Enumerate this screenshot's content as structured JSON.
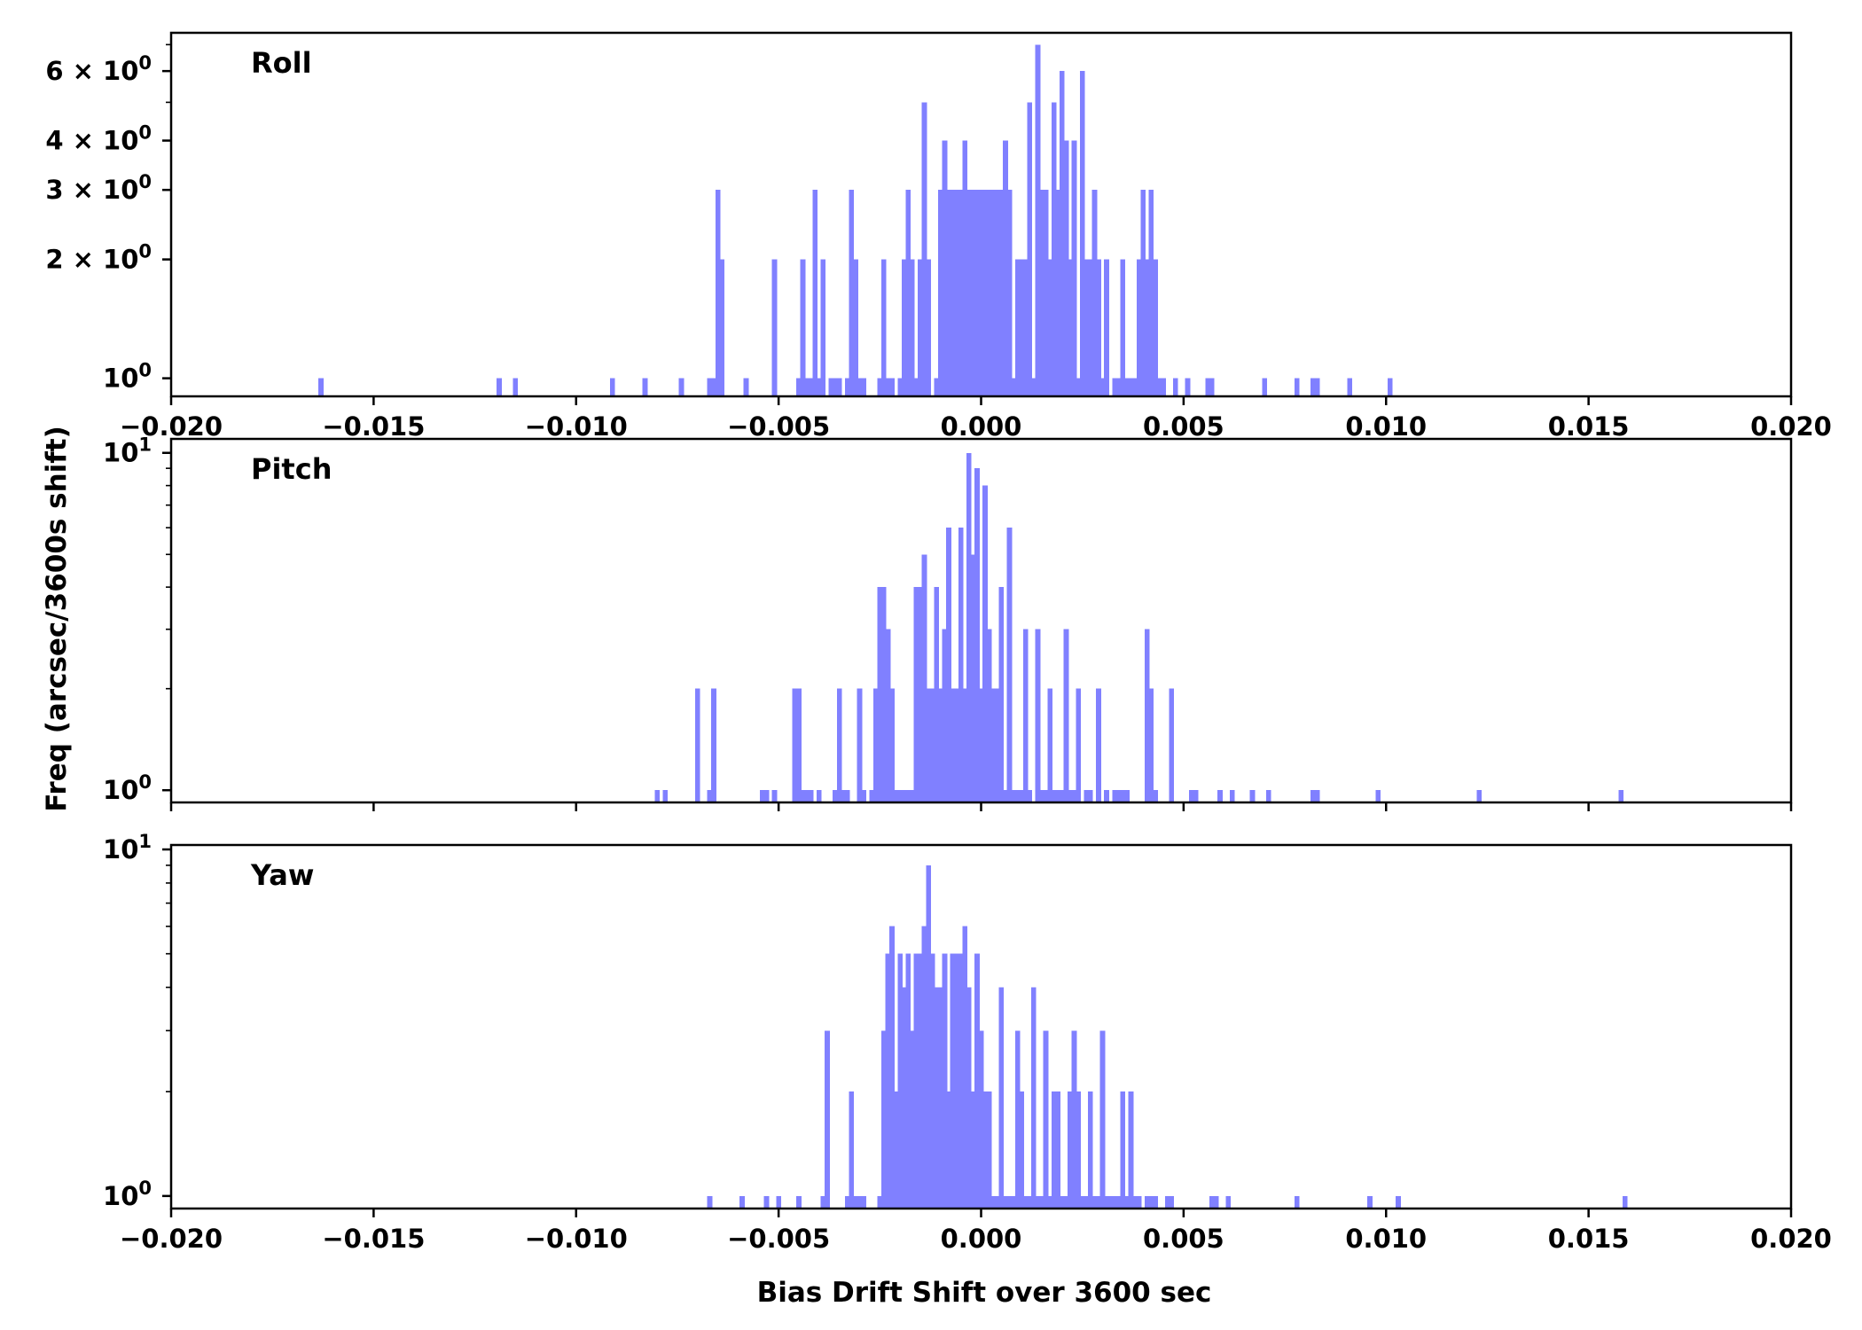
{
  "figure": {
    "xlabel": "Bias Drift Shift over 3600 sec",
    "ylabel": "Freq (arcsec/3600s shift)",
    "bar_color": "#8080ff"
  },
  "chart_data": [
    {
      "type": "bar",
      "title": "Roll",
      "xlim": [
        -0.02,
        0.02
      ],
      "ylim": [
        0.9,
        7.5
      ],
      "y_scale": "log",
      "bin_width": 0.000125,
      "x_ticks": [
        "−0.020",
        "−0.015",
        "−0.010",
        "−0.005",
        "0.000",
        "0.005",
        "0.010",
        "0.015",
        "0.020"
      ],
      "y_ticks": [
        {
          "value": 1,
          "base": "10",
          "exp": "0"
        },
        {
          "value": 2,
          "base": "2 × 10",
          "exp": "0"
        },
        {
          "value": 3,
          "base": "3 × 10",
          "exp": "0"
        },
        {
          "value": 4,
          "base": "4 × 10",
          "exp": "0"
        },
        {
          "value": 6,
          "base": "6 × 10",
          "exp": "0"
        }
      ],
      "y_minor_ticks": [
        5,
        7
      ],
      "x": [
        -0.0163,
        -0.0119,
        -0.0115,
        -0.0091,
        -0.0083,
        -0.0074,
        -0.0067,
        -0.0066,
        -0.0065,
        -0.0064,
        -0.0058,
        -0.0051,
        -0.0045,
        -0.0044,
        -0.0043,
        -0.0042,
        -0.0041,
        -0.004,
        -0.0039,
        -0.0037,
        -0.0036,
        -0.0035,
        -0.0033,
        -0.0032,
        -0.0031,
        -0.003,
        -0.0029,
        -0.0025,
        -0.0024,
        -0.0023,
        -0.0022,
        -0.002,
        -0.0019,
        -0.0018,
        -0.0017,
        -0.0016,
        -0.0015,
        -0.0014,
        -0.0013,
        -0.0011,
        -0.001,
        -0.0009,
        -0.0008,
        -0.0007,
        -0.0006,
        -0.0005,
        -0.0004,
        -0.0003,
        -0.0002,
        -0.0001,
        0.0,
        0.0001,
        0.0002,
        0.0003,
        0.0004,
        0.0005,
        0.0006,
        0.0007,
        0.0008,
        0.0009,
        0.001,
        0.0011,
        0.0012,
        0.0013,
        0.0014,
        0.0015,
        0.0016,
        0.0017,
        0.0018,
        0.0019,
        0.002,
        0.0021,
        0.0022,
        0.0023,
        0.0024,
        0.0025,
        0.0026,
        0.0027,
        0.0028,
        0.0029,
        0.003,
        0.0031,
        0.0033,
        0.0034,
        0.0035,
        0.0036,
        0.0037,
        0.0038,
        0.0039,
        0.004,
        0.0041,
        0.0042,
        0.0043,
        0.0044,
        0.0045,
        0.0048,
        0.0051,
        0.0056,
        0.0057,
        0.007,
        0.0078,
        0.0082,
        0.0083,
        0.0091,
        0.0101
      ],
      "values": [
        1,
        1,
        1,
        1,
        1,
        1,
        1,
        1,
        3,
        2,
        1,
        2,
        1,
        2,
        1,
        1,
        3,
        1,
        2,
        1,
        1,
        1,
        1,
        3,
        2,
        1,
        1,
        1,
        2,
        1,
        1,
        1,
        2,
        3,
        2,
        1,
        2,
        5,
        2,
        1,
        3,
        4,
        3,
        3,
        3,
        3,
        4,
        3,
        3,
        3,
        3,
        3,
        3,
        3,
        3,
        3,
        4,
        3,
        1,
        2,
        2,
        2,
        5,
        1,
        7,
        3,
        3,
        2,
        5,
        3,
        6,
        4,
        2,
        4,
        1,
        6,
        2,
        2,
        3,
        2,
        1,
        2,
        1,
        1,
        2,
        1,
        1,
        1,
        2,
        3,
        2,
        3,
        2,
        1,
        1,
        1,
        1,
        1,
        1,
        1,
        1,
        1,
        1,
        1,
        1
      ]
    },
    {
      "type": "bar",
      "title": "Pitch",
      "xlim": [
        -0.02,
        0.02
      ],
      "ylim": [
        0.92,
        11.0
      ],
      "y_scale": "log",
      "bin_width": 0.000125,
      "x_ticks": [],
      "y_ticks": [
        {
          "value": 1,
          "base": "10",
          "exp": "0"
        },
        {
          "value": 10,
          "base": "10",
          "exp": "1"
        }
      ],
      "y_minor_ticks": [
        2,
        3,
        4,
        5,
        6,
        7,
        8,
        9
      ],
      "x": [
        -0.008,
        -0.0078,
        -0.007,
        -0.0067,
        -0.0066,
        -0.0054,
        -0.0053,
        -0.0051,
        -0.0046,
        -0.0045,
        -0.0044,
        -0.0043,
        -0.0042,
        -0.004,
        -0.0036,
        -0.0035,
        -0.0034,
        -0.0033,
        -0.003,
        -0.0029,
        -0.0027,
        -0.0026,
        -0.0025,
        -0.0024,
        -0.0023,
        -0.0022,
        -0.0021,
        -0.002,
        -0.0019,
        -0.0018,
        -0.0017,
        -0.0016,
        -0.0015,
        -0.0014,
        -0.0013,
        -0.0012,
        -0.0011,
        -0.001,
        -0.0009,
        -0.0008,
        -0.0007,
        -0.0006,
        -0.0005,
        -0.0004,
        -0.0003,
        -0.0002,
        -0.0001,
        0.0,
        0.0001,
        0.0002,
        0.0003,
        0.0004,
        0.0005,
        0.0006,
        0.0007,
        0.0008,
        0.0009,
        0.001,
        0.0011,
        0.0012,
        0.0014,
        0.0015,
        0.0016,
        0.0017,
        0.0018,
        0.0019,
        0.002,
        0.0021,
        0.0022,
        0.0023,
        0.0024,
        0.0026,
        0.0027,
        0.0029,
        0.0031,
        0.0033,
        0.0034,
        0.0035,
        0.0036,
        0.0041,
        0.0042,
        0.0043,
        0.0047,
        0.0052,
        0.0053,
        0.0059,
        0.0062,
        0.0067,
        0.0071,
        0.0082,
        0.0083,
        0.0098,
        0.0123,
        0.0158
      ],
      "values": [
        1,
        1,
        2,
        1,
        2,
        1,
        1,
        1,
        2,
        2,
        1,
        1,
        1,
        1,
        1,
        2,
        1,
        1,
        2,
        1,
        1,
        2,
        4,
        4,
        3,
        2,
        1,
        1,
        1,
        1,
        1,
        4,
        4,
        5,
        2,
        2,
        4,
        2,
        3,
        6,
        2,
        2,
        6,
        2,
        10,
        5,
        9,
        2,
        8,
        3,
        2,
        2,
        4,
        1,
        6,
        1,
        1,
        1,
        3,
        1,
        3,
        1,
        1,
        2,
        1,
        1,
        1,
        3,
        1,
        1,
        2,
        1,
        1,
        2,
        1,
        1,
        1,
        1,
        1,
        3,
        2,
        1,
        2,
        1,
        1,
        1,
        1,
        1,
        1,
        1,
        1,
        1,
        1,
        1
      ]
    },
    {
      "type": "bar",
      "title": "Yaw",
      "xlim": [
        -0.02,
        0.02
      ],
      "ylim": [
        0.92,
        10.3
      ],
      "y_scale": "log",
      "bin_width": 0.000125,
      "x_ticks": [
        "−0.020",
        "−0.015",
        "−0.010",
        "−0.005",
        "0.000",
        "0.005",
        "0.010",
        "0.015",
        "0.020"
      ],
      "y_ticks": [
        {
          "value": 1,
          "base": "10",
          "exp": "0"
        },
        {
          "value": 10,
          "base": "10",
          "exp": "1"
        }
      ],
      "y_minor_ticks": [
        2,
        3,
        4,
        5,
        6,
        7,
        8,
        9
      ],
      "x": [
        -0.0067,
        -0.0059,
        -0.0053,
        -0.005,
        -0.0045,
        -0.0039,
        -0.0038,
        -0.0033,
        -0.0032,
        -0.0031,
        -0.003,
        -0.0029,
        -0.0025,
        -0.0024,
        -0.0023,
        -0.0022,
        -0.0021,
        -0.002,
        -0.0019,
        -0.0018,
        -0.0017,
        -0.0016,
        -0.0015,
        -0.0014,
        -0.0013,
        -0.0012,
        -0.0011,
        -0.001,
        -0.0009,
        -0.0008,
        -0.0007,
        -0.0006,
        -0.0005,
        -0.0004,
        -0.0003,
        -0.0002,
        -0.0001,
        0.0,
        0.0001,
        0.0002,
        0.0003,
        0.0004,
        0.0005,
        0.0006,
        0.0007,
        0.0008,
        0.0009,
        0.001,
        0.0011,
        0.0012,
        0.0013,
        0.0014,
        0.0015,
        0.0016,
        0.0017,
        0.0018,
        0.0019,
        0.002,
        0.0021,
        0.0022,
        0.0023,
        0.0024,
        0.0025,
        0.0026,
        0.0027,
        0.0028,
        0.0029,
        0.003,
        0.0031,
        0.0032,
        0.0033,
        0.0034,
        0.0035,
        0.0036,
        0.0037,
        0.0038,
        0.0039,
        0.0041,
        0.0042,
        0.0043,
        0.0046,
        0.0047,
        0.0057,
        0.0058,
        0.0061,
        0.0078,
        0.0096,
        0.0103,
        0.0159
      ],
      "values": [
        1,
        1,
        1,
        1,
        1,
        1,
        3,
        1,
        2,
        1,
        1,
        1,
        1,
        3,
        5,
        6,
        2,
        5,
        4,
        5,
        3,
        5,
        5,
        6,
        9,
        5,
        4,
        4,
        5,
        2,
        5,
        5,
        5,
        6,
        4,
        2,
        5,
        3,
        2,
        2,
        1,
        1,
        4,
        1,
        1,
        1,
        3,
        2,
        1,
        1,
        4,
        1,
        1,
        3,
        1,
        2,
        2,
        1,
        1,
        2,
        3,
        2,
        1,
        1,
        2,
        1,
        1,
        3,
        1,
        1,
        1,
        1,
        2,
        1,
        2,
        1,
        1,
        1,
        1,
        1,
        1,
        1,
        1,
        1,
        1,
        1,
        1,
        1,
        1
      ]
    }
  ]
}
